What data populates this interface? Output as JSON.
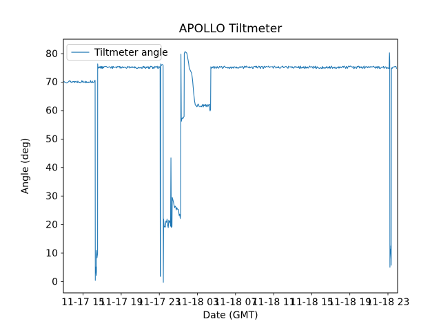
{
  "figure": {
    "title": "APOLLO Tiltmeter",
    "xlabel": "Date (GMT)",
    "ylabel": "Angle (deg)"
  },
  "legend": {
    "items": [
      {
        "label": "Tiltmeter angle",
        "color": "#1f77b4"
      }
    ]
  },
  "axes": {
    "xtick_labels": [
      "11-17 15",
      "11-17 19",
      "11-17 23",
      "11-18 03",
      "11-18 07",
      "11-18 11",
      "11-18 15",
      "11-18 19",
      "11-18 23"
    ],
    "xtick_hours": [
      15,
      19,
      23,
      27,
      31,
      35,
      39,
      43,
      47
    ],
    "ytick_labels": [
      "0",
      "10",
      "20",
      "30",
      "40",
      "50",
      "60",
      "70",
      "80"
    ],
    "ytick_values": [
      0,
      10,
      20,
      30,
      40,
      50,
      60,
      70,
      80
    ],
    "ylim": [
      -4,
      85
    ],
    "xlim_hours": [
      12.93,
      48.02
    ]
  },
  "chart_data": {
    "type": "line",
    "title": "APOLLO Tiltmeter",
    "xlabel": "Date (GMT)",
    "ylabel": "Angle (deg)",
    "x_unit": "hours since 11-17 00:00 GMT",
    "ylim": [
      -4,
      85
    ],
    "grid": false,
    "legend_position": "upper left",
    "series": [
      {
        "name": "Tiltmeter angle",
        "color": "#1f77b4",
        "segments": [
          {
            "type": "noisy",
            "h0": 13.0,
            "h1": 16.26,
            "mean": 70.15,
            "amp": 0.45
          },
          {
            "type": "points",
            "pts": [
              [
                16.26,
                69.8
              ],
              [
                16.28,
                0.4
              ]
            ]
          },
          {
            "type": "noisy",
            "h0": 16.28,
            "h1": 16.4,
            "mean": 3.2,
            "amp": 2.8
          },
          {
            "type": "noisy",
            "h0": 16.4,
            "h1": 16.52,
            "mean": 9.0,
            "amp": 3.4
          },
          {
            "type": "points",
            "pts": [
              [
                16.52,
                12.8
              ],
              [
                16.53,
                76.4
              ],
              [
                16.56,
                74.9
              ],
              [
                16.6,
                75.3
              ]
            ]
          },
          {
            "type": "noisy",
            "h0": 16.6,
            "h1": 23.08,
            "mean": 75.2,
            "amp": 0.45
          },
          {
            "type": "points",
            "pts": [
              [
                23.08,
                75.4
              ],
              [
                23.1,
                1.8
              ],
              [
                23.12,
                1.8
              ],
              [
                23.14,
                76.4
              ]
            ]
          },
          {
            "type": "noisy",
            "h0": 23.14,
            "h1": 23.4,
            "mean": 76.1,
            "amp": 0.3
          },
          {
            "type": "points",
            "pts": [
              [
                23.4,
                75.9
              ],
              [
                23.42,
                -0.3
              ],
              [
                23.45,
                20.6
              ]
            ]
          },
          {
            "type": "noisy",
            "h0": 23.45,
            "h1": 24.18,
            "mean": 20.4,
            "amp": 1.7
          },
          {
            "type": "points",
            "pts": [
              [
                24.18,
                19.4
              ],
              [
                24.22,
                43.4
              ],
              [
                24.26,
                19.0
              ],
              [
                24.33,
                19.3
              ],
              [
                24.36,
                29.4
              ]
            ]
          },
          {
            "type": "trend",
            "h0": 24.36,
            "h1": 25.2,
            "v0": 28.6,
            "v1": 23.0,
            "amp": 1.1
          },
          {
            "type": "points",
            "pts": [
              [
                25.2,
                22.4
              ],
              [
                25.24,
                23.6
              ],
              [
                25.27,
                79.8
              ],
              [
                25.31,
                56.4
              ]
            ]
          },
          {
            "type": "trend",
            "h0": 25.31,
            "h1": 25.6,
            "v0": 56.6,
            "v1": 58.0,
            "amp": 0.35
          },
          {
            "type": "points",
            "pts": [
              [
                25.6,
                58.2
              ],
              [
                25.62,
                80.1
              ],
              [
                25.7,
                80.7
              ],
              [
                25.88,
                80.2
              ],
              [
                25.96,
                78.9
              ],
              [
                26.08,
                76.6
              ],
              [
                26.14,
                74.9
              ],
              [
                26.28,
                73.9
              ],
              [
                26.4,
                73.1
              ],
              [
                26.5,
                70.4
              ],
              [
                26.6,
                66.4
              ],
              [
                26.7,
                63.4
              ],
              [
                26.76,
                62.3
              ]
            ]
          },
          {
            "type": "noisy",
            "h0": 26.76,
            "h1": 28.28,
            "mean": 61.7,
            "amp": 0.65
          },
          {
            "type": "points",
            "pts": [
              [
                28.28,
                60.7
              ],
              [
                28.33,
                59.9
              ],
              [
                28.38,
                60.4
              ],
              [
                28.41,
                75.3
              ]
            ]
          },
          {
            "type": "noisy",
            "h0": 28.41,
            "h1": 47.13,
            "mean": 75.2,
            "amp": 0.45
          },
          {
            "type": "points",
            "pts": [
              [
                47.13,
                75.6
              ],
              [
                47.16,
                80.3
              ],
              [
                47.19,
                77.5
              ],
              [
                47.21,
                5.0
              ]
            ]
          },
          {
            "type": "noisy",
            "h0": 47.21,
            "h1": 47.31,
            "mean": 9.0,
            "amp": 4.0
          },
          {
            "type": "points",
            "pts": [
              [
                47.31,
                12.5
              ],
              [
                47.34,
                5.7
              ],
              [
                47.37,
                74.9
              ]
            ]
          },
          {
            "type": "noisy",
            "h0": 47.37,
            "h1": 47.9,
            "mean": 75.2,
            "amp": 0.5
          }
        ]
      }
    ]
  }
}
